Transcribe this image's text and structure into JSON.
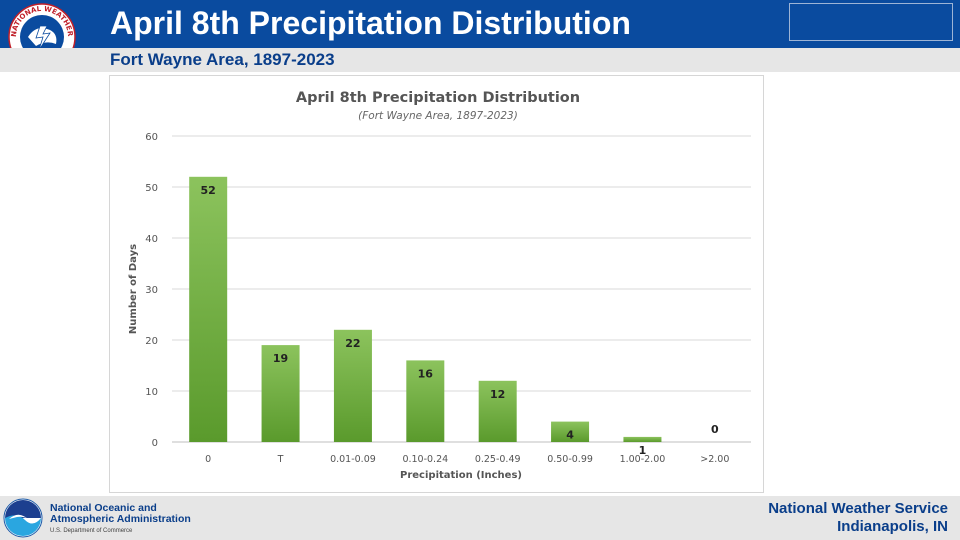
{
  "header": {
    "title": "April 8th Precipitation Distribution",
    "subtitle": "Fort Wayne Area, 1897-2023",
    "logo_text": "NATIONAL WEATHER SERVICE",
    "accent_color": "#0a4b9f"
  },
  "footer": {
    "org_line1": "National Oceanic and",
    "org_line2": "Atmospheric Administration",
    "dept": "U.S. Department of Commerce",
    "nws_line1": "National Weather Service",
    "nws_line2": "Indianapolis, IN"
  },
  "chart_data": {
    "type": "bar",
    "title": "April 8th Precipitation Distribution",
    "subtitle": "(Fort Wayne Area, 1897-2023)",
    "xlabel": "Precipitation (Inches)",
    "ylabel": "Number of Days",
    "categories": [
      "0",
      "T",
      "0.01-0.09",
      "0.10-0.24",
      "0.25-0.49",
      "0.50-0.99",
      "1.00-2.00",
      ">2.00"
    ],
    "values": [
      52,
      19,
      22,
      16,
      12,
      4,
      1,
      0
    ],
    "ylim": [
      0,
      60
    ],
    "yticks": [
      0,
      10,
      20,
      30,
      40,
      50,
      60
    ],
    "grid": true,
    "legend": "none",
    "bar_color": "#6aaa3c"
  }
}
